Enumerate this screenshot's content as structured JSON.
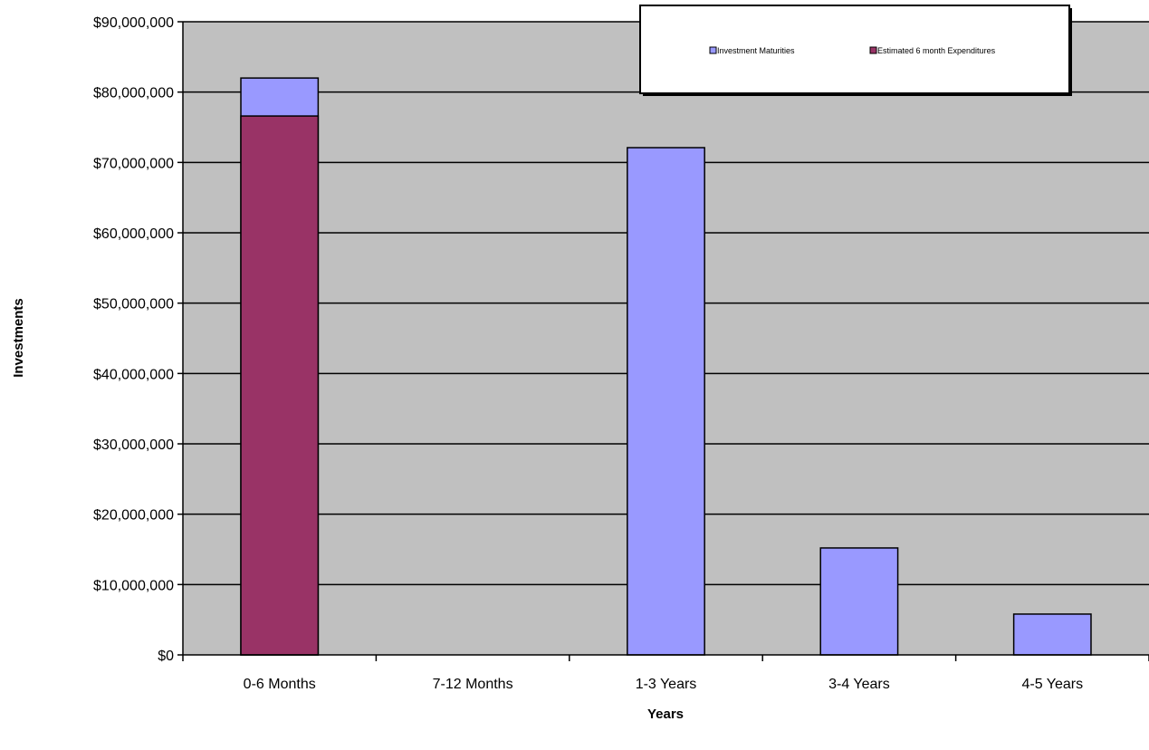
{
  "chart_data": {
    "type": "bar",
    "title": "",
    "xlabel": "Years",
    "ylabel": "Investments",
    "categories": [
      "0-6 Months",
      "7-12 Months",
      "1-3 Years",
      "3-4 Years",
      "4-5 Years"
    ],
    "series": [
      {
        "name": "Investment Maturities",
        "values": [
          82000000,
          0,
          72100000,
          15200000,
          5800000
        ],
        "color": "#9999ff"
      },
      {
        "name": "Estimated 6 month Expenditures",
        "values": [
          76600000,
          null,
          null,
          null,
          null
        ],
        "color": "#993366"
      }
    ],
    "ylim": [
      0,
      90000000
    ],
    "yticks": [
      0,
      10000000,
      20000000,
      30000000,
      40000000,
      50000000,
      60000000,
      70000000,
      80000000,
      90000000
    ],
    "ytick_labels": [
      "$0",
      "$10,000,000",
      "$20,000,000",
      "$30,000,000",
      "$40,000,000",
      "$50,000,000",
      "$60,000,000",
      "$70,000,000",
      "$80,000,000",
      "$90,000,000"
    ],
    "grid": true,
    "legend": "top-right",
    "plot_background": "#c0c0c0"
  }
}
